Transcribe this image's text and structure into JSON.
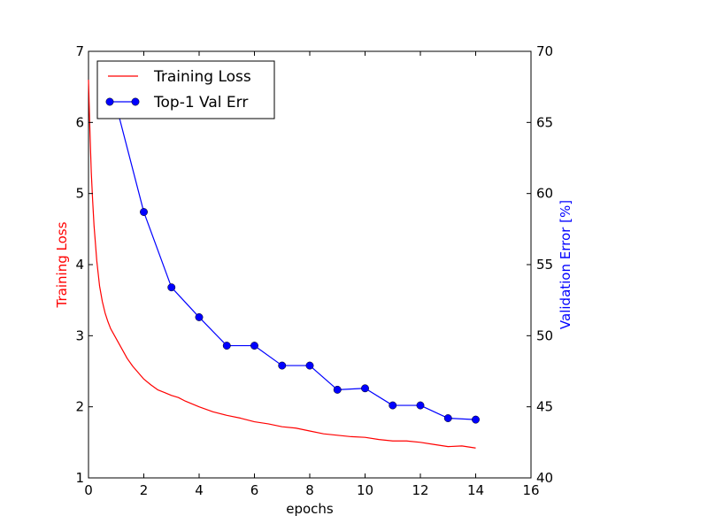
{
  "chart_data": {
    "type": "line",
    "title": "",
    "xlabel": "epochs",
    "ylabel_left": "Training Loss",
    "ylabel_right": "Validation Error [%]",
    "xlim": [
      0,
      16
    ],
    "ylim_left": [
      1,
      7
    ],
    "ylim_right": [
      40,
      70
    ],
    "x_ticks": [
      "0",
      "2",
      "4",
      "6",
      "8",
      "10",
      "12",
      "14",
      "16"
    ],
    "y_ticks_left": [
      "1",
      "2",
      "3",
      "4",
      "5",
      "6",
      "7"
    ],
    "y_ticks_right": [
      "40",
      "45",
      "50",
      "55",
      "60",
      "65",
      "70"
    ],
    "grid": false,
    "legend_position": "top-left",
    "series": [
      {
        "name": "Training Loss",
        "axis": "left",
        "color": "#ff0000",
        "marker": "none",
        "x": [
          0,
          0.05,
          0.1,
          0.15,
          0.2,
          0.3,
          0.4,
          0.5,
          0.6,
          0.7,
          0.8,
          0.9,
          1.0,
          1.2,
          1.4,
          1.6,
          1.8,
          2.0,
          2.25,
          2.5,
          2.75,
          3.0,
          3.25,
          3.5,
          3.75,
          4.0,
          4.5,
          5.0,
          5.5,
          6.0,
          6.5,
          7.0,
          7.5,
          8.0,
          8.5,
          9.0,
          9.5,
          10.0,
          10.5,
          11.0,
          11.5,
          12.0,
          12.5,
          13.0,
          13.5,
          14.0
        ],
        "values": [
          6.6,
          5.9,
          5.3,
          4.9,
          4.55,
          4.05,
          3.7,
          3.48,
          3.32,
          3.2,
          3.1,
          3.03,
          2.96,
          2.82,
          2.68,
          2.57,
          2.48,
          2.39,
          2.31,
          2.24,
          2.2,
          2.16,
          2.13,
          2.08,
          2.04,
          2.0,
          1.93,
          1.88,
          1.84,
          1.79,
          1.76,
          1.72,
          1.7,
          1.66,
          1.62,
          1.6,
          1.58,
          1.57,
          1.54,
          1.52,
          1.52,
          1.5,
          1.47,
          1.44,
          1.45,
          1.42
        ]
      },
      {
        "name": "Top-1 Val Err",
        "axis": "right",
        "color": "#0000ff",
        "marker": "circle",
        "x": [
          1,
          2,
          3,
          4,
          5,
          6,
          7,
          8,
          9,
          10,
          11,
          12,
          13,
          14
        ],
        "values": [
          66.2,
          58.7,
          53.4,
          51.3,
          49.3,
          49.3,
          47.9,
          47.9,
          46.2,
          46.3,
          45.1,
          45.1,
          44.2,
          44.1
        ]
      }
    ]
  }
}
